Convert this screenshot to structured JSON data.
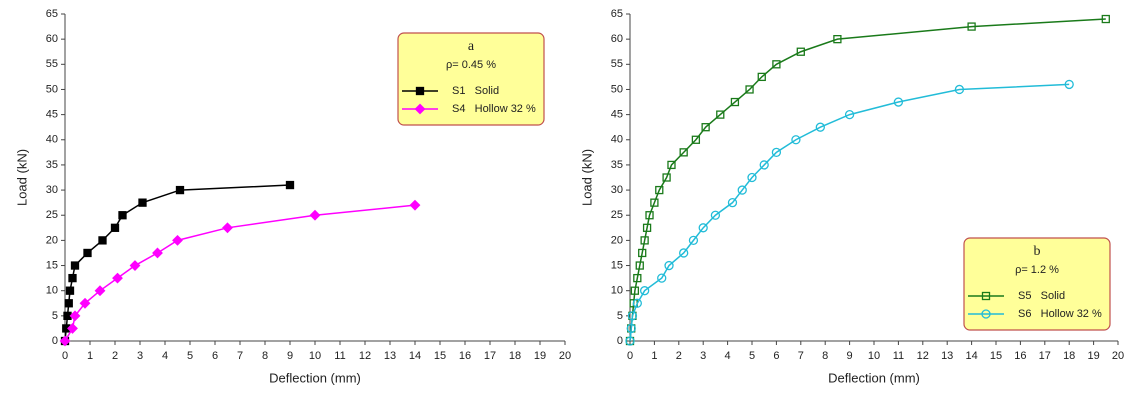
{
  "chart_data": [
    {
      "type": "line",
      "xlabel": "Deflection (mm)",
      "ylabel": "Load (kN)",
      "xlim": [
        0,
        20
      ],
      "xticks": [
        0,
        1,
        2,
        3,
        4,
        5,
        6,
        7,
        8,
        9,
        10,
        11,
        12,
        13,
        14,
        15,
        16,
        17,
        18,
        19,
        20
      ],
      "ylim": [
        0,
        65
      ],
      "yticks": [
        0,
        5,
        10,
        15,
        20,
        25,
        30,
        35,
        40,
        45,
        50,
        55,
        60,
        65
      ],
      "legend": "upper right",
      "legend_title": "a",
      "legend_subtitle": "ρ= 0.45 %",
      "series": [
        {
          "name": "S1   Solid",
          "color": "#000000",
          "marker": "square",
          "filled": true,
          "x": [
            0,
            0.05,
            0.1,
            0.15,
            0.2,
            0.3,
            0.4,
            0.9,
            1.5,
            2,
            2.3,
            3.1,
            4.6,
            9
          ],
          "values": [
            0,
            2.5,
            5,
            7.5,
            10,
            12.5,
            15,
            17.5,
            20,
            22.5,
            25,
            27.5,
            30,
            31
          ]
        },
        {
          "name": "S4   Hollow 32 %",
          "color": "#ff00ff",
          "marker": "diamond",
          "filled": true,
          "x": [
            0,
            0.3,
            0.4,
            0.8,
            1.4,
            2.1,
            2.8,
            3.7,
            4.5,
            6.5,
            10,
            14
          ],
          "values": [
            0,
            2.5,
            5,
            7.5,
            10,
            12.5,
            15,
            17.5,
            20,
            22.5,
            25,
            27
          ]
        }
      ]
    },
    {
      "type": "line",
      "xlabel": "Deflection (mm)",
      "ylabel": "Load (kN)",
      "xlim": [
        0,
        20
      ],
      "xticks": [
        0,
        1,
        2,
        3,
        4,
        5,
        6,
        7,
        8,
        9,
        10,
        11,
        12,
        13,
        14,
        15,
        16,
        17,
        18,
        19,
        20
      ],
      "ylim": [
        0,
        65
      ],
      "yticks": [
        0,
        5,
        10,
        15,
        20,
        25,
        30,
        35,
        40,
        45,
        50,
        55,
        60,
        65
      ],
      "legend": "lower right",
      "legend_title": "b",
      "legend_subtitle": "ρ= 1.2 %",
      "series": [
        {
          "name": "S5   Solid",
          "color": "#1a7a1a",
          "marker": "square",
          "filled": false,
          "x": [
            0,
            0.05,
            0.1,
            0.15,
            0.2,
            0.3,
            0.4,
            0.5,
            0.6,
            0.7,
            0.8,
            1,
            1.2,
            1.5,
            1.7,
            2.2,
            2.7,
            3.1,
            3.7,
            4.3,
            4.9,
            5.4,
            6,
            7,
            8.5,
            14,
            19.5
          ],
          "values": [
            0,
            2.5,
            5,
            7.5,
            10,
            12.5,
            15,
            17.5,
            20,
            22.5,
            25,
            27.5,
            30,
            32.5,
            35,
            37.5,
            40,
            42.5,
            45,
            47.5,
            50,
            52.5,
            55,
            57.5,
            60,
            62.5,
            64
          ]
        },
        {
          "name": "S6   Hollow 32 %",
          "color": "#22bcd8",
          "marker": "circle",
          "filled": false,
          "x": [
            0,
            0.05,
            0.1,
            0.3,
            0.6,
            1.3,
            1.6,
            2.2,
            2.6,
            3,
            3.5,
            4.2,
            4.6,
            5,
            5.5,
            6,
            6.8,
            7.8,
            9,
            11,
            13.5,
            18
          ],
          "values": [
            0,
            2.5,
            5,
            7.5,
            10,
            12.5,
            15,
            17.5,
            20,
            22.5,
            25,
            27.5,
            30,
            32.5,
            35,
            37.5,
            40,
            42.5,
            45,
            47.5,
            50,
            51
          ]
        }
      ]
    }
  ]
}
